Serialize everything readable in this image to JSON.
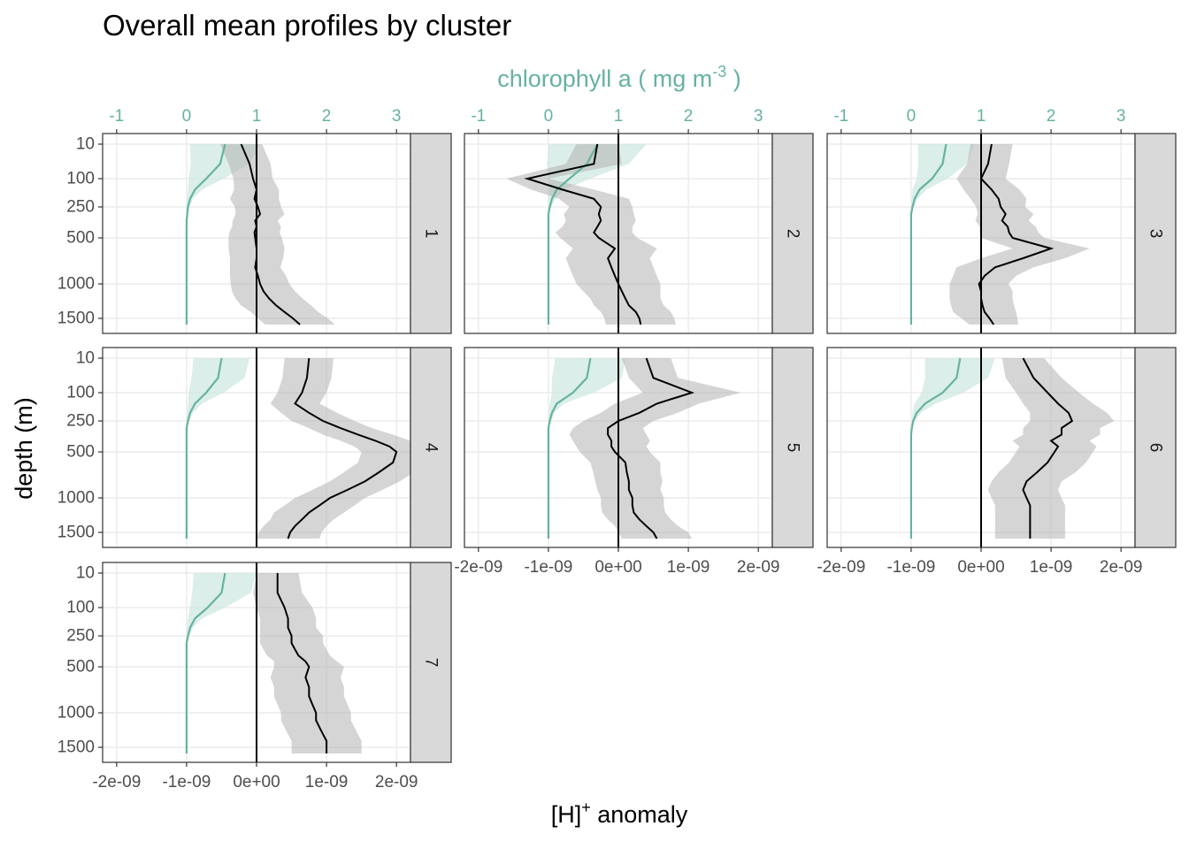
{
  "chart_data": {
    "type": "line",
    "title": "Overall mean profiles by cluster",
    "ylabel": "depth (m)",
    "xlabel": "[H]",
    "xlabel_sup": "+",
    "xlabel_rest": " anomaly",
    "x2label": "chlorophyll a ( mg m",
    "x2label_sup": "-3",
    "x2label_rest": " )",
    "y_reversed": true,
    "y_ticks": [
      10,
      100,
      250,
      500,
      1000,
      1500
    ],
    "y_tick_labels": [
      "10",
      "100",
      "250",
      "500",
      "1000",
      "1500"
    ],
    "xlim": [
      -2.2e-09,
      2.2e-09
    ],
    "x_ticks": [
      -2e-09,
      -1e-09,
      0,
      1e-09,
      2e-09
    ],
    "x_tick_labels": [
      "-2e-09",
      "-1e-09",
      "0e+00",
      "1e-09",
      "2e-09"
    ],
    "x2_ticks": [
      -1,
      0,
      1,
      2,
      3
    ],
    "x2_tick_labels": [
      "-1",
      "0",
      "1",
      "2",
      "3"
    ],
    "x2_transform": "H = (chl - 1) * 1e-09",
    "vline_x": 0,
    "colors": {
      "hplus": "#000000",
      "hplus_band": "#b3b3b3",
      "chl": "#66b2a0",
      "chl_band": "#cfe8e1",
      "strip": "#d9d9d9"
    },
    "depths": [
      10,
      50,
      100,
      150,
      200,
      250,
      300,
      350,
      400,
      450,
      500,
      600,
      700,
      800,
      900,
      1000,
      1100,
      1200,
      1300,
      1400,
      1500,
      1600
    ],
    "clusters": [
      {
        "label": "1",
        "hplus_mean": [
          -2.2e-10,
          -1e-10,
          -5e-11,
          0.0,
          -3e-11,
          2e-11,
          5e-11,
          -2e-11,
          0.0,
          -3e-11,
          -2e-11,
          0.0,
          0.0,
          -2e-11,
          2e-11,
          5e-11,
          1e-10,
          1.8e-10,
          2.8e-10,
          4e-10,
          5.2e-10,
          6.2e-10
        ],
        "hplus_sd": [
          3e-10,
          3e-10,
          2.8e-10,
          3.2e-10,
          3.5e-10,
          3.3e-10,
          3.5e-10,
          3.2e-10,
          3.5e-10,
          3.6e-10,
          3.8e-10,
          4e-10,
          3.8e-10,
          3.6e-10,
          4e-10,
          4.2e-10,
          4.5e-10,
          4.8e-10,
          5e-10,
          4.8e-10,
          5e-10,
          5e-10
        ],
        "chl_mean": [
          0.55,
          0.48,
          0.28,
          0.12,
          0.05,
          0.02,
          0.01,
          0.0,
          0,
          0,
          0,
          0,
          0,
          0,
          0,
          0,
          0,
          0,
          0,
          0,
          0,
          0
        ],
        "chl_sd": [
          0.5,
          0.42,
          0.25,
          0.1,
          0.04,
          0.02,
          0.01,
          0,
          0,
          0,
          0,
          0,
          0,
          0,
          0,
          0,
          0,
          0,
          0,
          0,
          0,
          0
        ]
      },
      {
        "label": "2",
        "hplus_mean": [
          -3e-10,
          -3.5e-10,
          -1.3e-09,
          -8e-10,
          -3.5e-10,
          -2.5e-10,
          -2.8e-10,
          -2.5e-10,
          -3e-10,
          -3.5e-10,
          -2.8e-10,
          -5e-11,
          -1.5e-10,
          -1e-10,
          -5e-11,
          0.0,
          5e-11,
          1e-10,
          1.5e-10,
          2.5e-10,
          3e-10,
          3.2e-10
        ],
        "hplus_sd": [
          3e-10,
          4e-10,
          3e-10,
          4.5e-10,
          5e-10,
          4.5e-10,
          5e-10,
          5e-10,
          5e-10,
          5.5e-10,
          5.5e-10,
          6e-10,
          6e-10,
          6e-10,
          6e-10,
          6e-10,
          5.5e-10,
          5e-10,
          5e-10,
          5e-10,
          5e-10,
          5e-10
        ],
        "chl_mean": [
          0.7,
          0.55,
          0.3,
          0.12,
          0.05,
          0.02,
          0.0,
          0,
          0,
          0,
          0,
          0,
          0,
          0,
          0,
          0,
          0,
          0,
          0,
          0,
          0,
          0
        ],
        "chl_sd": [
          0.7,
          0.6,
          0.3,
          0.1,
          0.05,
          0.02,
          0,
          0,
          0,
          0,
          0,
          0,
          0,
          0,
          0,
          0,
          0,
          0,
          0,
          0,
          0,
          0
        ]
      },
      {
        "label": "3",
        "hplus_mean": [
          1.5e-10,
          1e-10,
          0.0,
          1.5e-10,
          2.5e-10,
          2.8e-10,
          3.5e-10,
          3e-10,
          3.8e-10,
          4e-10,
          4.5e-10,
          1e-09,
          6e-10,
          2e-10,
          5e-11,
          -3e-11,
          0.0,
          0.0,
          2e-11,
          5e-11,
          1.2e-10,
          1.8e-10
        ],
        "hplus_sd": [
          3e-10,
          3e-10,
          3.5e-10,
          4e-10,
          4e-10,
          3.5e-10,
          4e-10,
          3.8e-10,
          4e-10,
          4.2e-10,
          4.5e-10,
          5.5e-10,
          6e-10,
          5.5e-10,
          4.5e-10,
          4.2e-10,
          4.5e-10,
          4.5e-10,
          4.5e-10,
          4.5e-10,
          4e-10,
          3.5e-10
        ],
        "chl_mean": [
          0.5,
          0.45,
          0.3,
          0.12,
          0.05,
          0.02,
          0.0,
          0,
          0,
          0,
          0,
          0,
          0,
          0,
          0,
          0,
          0,
          0,
          0,
          0,
          0,
          0
        ],
        "chl_sd": [
          0.4,
          0.35,
          0.22,
          0.1,
          0.04,
          0.02,
          0,
          0,
          0,
          0,
          0,
          0,
          0,
          0,
          0,
          0,
          0,
          0,
          0,
          0,
          0,
          0
        ]
      },
      {
        "label": "4",
        "hplus_mean": [
          7.5e-10,
          7.2e-10,
          6.5e-10,
          5.5e-10,
          7.5e-10,
          9.5e-10,
          1.2e-09,
          1.45e-09,
          1.7e-09,
          1.9e-09,
          2e-09,
          1.95e-09,
          1.75e-09,
          1.55e-09,
          1.3e-09,
          1.05e-09,
          9e-10,
          7.5e-10,
          6.5e-10,
          5.5e-10,
          4.8e-10,
          4.5e-10
        ],
        "hplus_sd": [
          3.5e-10,
          3.5e-10,
          3.5e-10,
          3.5e-10,
          4e-10,
          4.5e-10,
          4.5e-10,
          5e-10,
          5e-10,
          5e-10,
          5e-10,
          5e-10,
          5e-10,
          5e-10,
          5e-10,
          5e-10,
          5e-10,
          5e-10,
          4.5e-10,
          4.5e-10,
          4.5e-10,
          4.5e-10
        ],
        "chl_mean": [
          0.5,
          0.45,
          0.28,
          0.12,
          0.05,
          0.02,
          0.0,
          0,
          0,
          0,
          0,
          0,
          0,
          0,
          0,
          0,
          0,
          0,
          0,
          0,
          0,
          0
        ],
        "chl_sd": [
          0.4,
          0.38,
          0.25,
          0.1,
          0.04,
          0.02,
          0,
          0,
          0,
          0,
          0,
          0,
          0,
          0,
          0,
          0,
          0,
          0,
          0,
          0,
          0,
          0
        ]
      },
      {
        "label": "5",
        "hplus_mean": [
          4e-10,
          5e-10,
          1.05e-09,
          5.5e-10,
          3e-10,
          0.0,
          -1.5e-10,
          -1.5e-10,
          -1e-10,
          -1e-10,
          -5e-11,
          1e-10,
          1.2e-10,
          1.5e-10,
          1.5e-10,
          2e-10,
          2e-10,
          2.2e-10,
          3e-10,
          4e-10,
          5e-10,
          5.5e-10
        ],
        "hplus_sd": [
          3.5e-10,
          3.5e-10,
          7e-10,
          6e-10,
          5.5e-10,
          5e-10,
          5e-10,
          5.5e-10,
          5.5e-10,
          5e-10,
          5e-10,
          5e-10,
          4.8e-10,
          4.8e-10,
          4.5e-10,
          4.5e-10,
          4.5e-10,
          4.5e-10,
          4.5e-10,
          4.5e-10,
          5e-10,
          5e-10
        ],
        "chl_mean": [
          0.6,
          0.55,
          0.35,
          0.12,
          0.05,
          0.02,
          0.0,
          0,
          0,
          0,
          0,
          0,
          0,
          0,
          0,
          0,
          0,
          0,
          0,
          0,
          0,
          0
        ],
        "chl_sd": [
          0.5,
          0.5,
          0.3,
          0.1,
          0.04,
          0.02,
          0,
          0,
          0,
          0,
          0,
          0,
          0,
          0,
          0,
          0,
          0,
          0,
          0,
          0,
          0,
          0
        ]
      },
      {
        "label": "6",
        "hplus_mean": [
          6e-10,
          7.5e-10,
          9.5e-10,
          1.1e-09,
          1.25e-09,
          1.3e-09,
          1.15e-09,
          1.15e-09,
          1e-09,
          1.1e-09,
          1.05e-09,
          9.5e-10,
          8e-10,
          6.5e-10,
          6e-10,
          6.5e-10,
          7e-10,
          7e-10,
          7e-10,
          7e-10,
          7e-10,
          7e-10
        ],
        "hplus_sd": [
          3e-10,
          4e-10,
          4.5e-10,
          5e-10,
          5.5e-10,
          6e-10,
          5.5e-10,
          5.5e-10,
          5.5e-10,
          5.5e-10,
          5.5e-10,
          5.5e-10,
          5.5e-10,
          5e-10,
          5e-10,
          5e-10,
          5e-10,
          5e-10,
          5e-10,
          5e-10,
          5e-10,
          5e-10
        ],
        "chl_mean": [
          0.7,
          0.65,
          0.45,
          0.2,
          0.08,
          0.03,
          0.01,
          0,
          0,
          0,
          0,
          0,
          0,
          0,
          0,
          0,
          0,
          0,
          0,
          0,
          0,
          0
        ],
        "chl_sd": [
          0.5,
          0.45,
          0.3,
          0.15,
          0.06,
          0.02,
          0.01,
          0,
          0,
          0,
          0,
          0,
          0,
          0,
          0,
          0,
          0,
          0,
          0,
          0,
          0,
          0
        ]
      },
      {
        "label": "7",
        "hplus_mean": [
          3e-10,
          3e-10,
          4e-10,
          4.5e-10,
          4.5e-10,
          5e-10,
          5e-10,
          5.5e-10,
          6e-10,
          7e-10,
          7.5e-10,
          7e-10,
          7.5e-10,
          7.5e-10,
          8e-10,
          8.5e-10,
          8.5e-10,
          9e-10,
          9.5e-10,
          1e-09,
          1e-09,
          1e-09
        ],
        "hplus_sd": [
          3e-10,
          3.5e-10,
          4e-10,
          4e-10,
          4e-10,
          4.5e-10,
          4.5e-10,
          4.5e-10,
          4.5e-10,
          4.5e-10,
          5e-10,
          5e-10,
          5e-10,
          5e-10,
          5e-10,
          5e-10,
          5e-10,
          5e-10,
          5e-10,
          5e-10,
          5e-10,
          5e-10
        ],
        "chl_mean": [
          0.55,
          0.5,
          0.3,
          0.12,
          0.05,
          0.02,
          0.0,
          0,
          0,
          0,
          0,
          0,
          0,
          0,
          0,
          0,
          0,
          0,
          0,
          0,
          0,
          0
        ],
        "chl_sd": [
          0.45,
          0.42,
          0.25,
          0.1,
          0.04,
          0.02,
          0,
          0,
          0,
          0,
          0,
          0,
          0,
          0,
          0,
          0,
          0,
          0,
          0,
          0,
          0,
          0
        ]
      }
    ]
  }
}
